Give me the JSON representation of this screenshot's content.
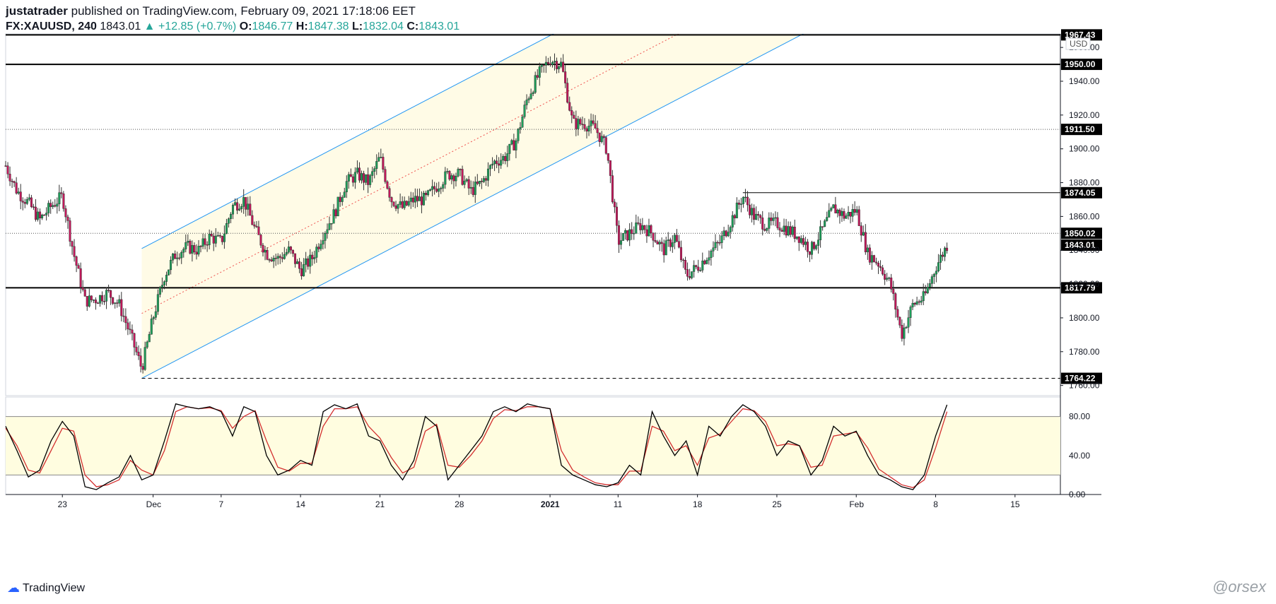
{
  "header": {
    "author": "justatrader",
    "published_text": "published on TradingView.com, February 09, 2021 17:18:06 EET",
    "symbol": "FX:XAUUSD, 240",
    "last": "1843.01",
    "change": "▲ +12.85 (+0.7%)",
    "open_label": "O:",
    "open": "1846.77",
    "high_label": "H:",
    "high": "1847.38",
    "low_label": "L:",
    "low": "1832.04",
    "close_label": "C:",
    "close": "1843.01"
  },
  "footer": {
    "brand": "TradingView",
    "watermark": "@orsex"
  },
  "colors": {
    "up": "#26a69a",
    "down": "#ef5350",
    "candle_up_body": "#1e9e5a",
    "candle_down_body": "#c2185b",
    "channel_line": "#2196f3",
    "channel_fill": "#fffbe6",
    "stoch_band": "#fffde0",
    "stoch_k": "#000000",
    "stoch_d": "#d32f2f"
  },
  "chart_data": [
    {
      "type": "candlestick",
      "currency_label": "USD",
      "ylim": [
        1754,
        1968
      ],
      "y_ticks": [
        "1960.00",
        "1940.00",
        "1920.00",
        "1900.00",
        "1880.00",
        "1860.00",
        "1840.00",
        "1820.00",
        "1800.00",
        "1780.00",
        "1760.00"
      ],
      "x_ticks": [
        "23",
        "Dec",
        "7",
        "14",
        "21",
        "28",
        "2021",
        "11",
        "18",
        "25",
        "Feb",
        "8",
        "15"
      ],
      "x_ticks_bold": [
        "2021"
      ],
      "horizontal_levels": [
        {
          "value": 1967.43,
          "label": "1967.43",
          "style": "solid"
        },
        {
          "value": 1950.0,
          "label": "1950.00",
          "style": "solid"
        },
        {
          "value": 1911.5,
          "label": "1911.50",
          "style": "dotted"
        },
        {
          "value": 1874.05,
          "label": "1874.05",
          "style": "segment"
        },
        {
          "value": 1850.02,
          "label": "1850.02",
          "style": "dotted"
        },
        {
          "value": 1843.01,
          "label": "1843.01",
          "style": "current"
        },
        {
          "value": 1817.79,
          "label": "1817.79",
          "style": "solid"
        },
        {
          "value": 1764.22,
          "label": "1764.22",
          "style": "dashed"
        }
      ],
      "channel": {
        "start_date": "Nov 30",
        "end_date": "Jan 11",
        "lower_start": 1764.2,
        "lower_end": 1911.0,
        "upper_start": 1841.0,
        "upper_end": 1988.0
      },
      "price_path": [
        [
          "Nov 18",
          1890
        ],
        [
          "Nov 19",
          1875
        ],
        [
          "Nov 20",
          1868
        ],
        [
          "Nov 21",
          1858
        ],
        [
          "Nov 22",
          1866
        ],
        [
          "Nov 23",
          1872
        ],
        [
          "Nov 24",
          1838
        ],
        [
          "Nov 25",
          1810
        ],
        [
          "Nov 26",
          1811
        ],
        [
          "Nov 27",
          1815
        ],
        [
          "Nov 28",
          1808
        ],
        [
          "Nov 29",
          1790
        ],
        [
          "Nov 30",
          1770
        ],
        [
          "Dec 1",
          1800
        ],
        [
          "Dec 2",
          1825
        ],
        [
          "Dec 3",
          1838
        ],
        [
          "Dec 4",
          1842
        ],
        [
          "Dec 5",
          1840
        ],
        [
          "Dec 6",
          1848
        ],
        [
          "Dec 7",
          1845
        ],
        [
          "Dec 8",
          1866
        ],
        [
          "Dec 9",
          1870
        ],
        [
          "Dec 10",
          1852
        ],
        [
          "Dec 11",
          1838
        ],
        [
          "Dec 12",
          1835
        ],
        [
          "Dec 13",
          1840
        ],
        [
          "Dec 14",
          1828
        ],
        [
          "Dec 15",
          1835
        ],
        [
          "Dec 16",
          1850
        ],
        [
          "Dec 17",
          1862
        ],
        [
          "Dec 18",
          1880
        ],
        [
          "Dec 19",
          1885
        ],
        [
          "Dec 20",
          1880
        ],
        [
          "Dec 21",
          1895
        ],
        [
          "Dec 22",
          1870
        ],
        [
          "Dec 23",
          1865
        ],
        [
          "Dec 24",
          1870
        ],
        [
          "Dec 25",
          1870
        ],
        [
          "Dec 26",
          1878
        ],
        [
          "Dec 27",
          1885
        ],
        [
          "Dec 28",
          1885
        ],
        [
          "Dec 29",
          1875
        ],
        [
          "Dec 30",
          1880
        ],
        [
          "Dec 31",
          1892
        ],
        [
          "Jan 1",
          1895
        ],
        [
          "Jan 2",
          1905
        ],
        [
          "Jan 3",
          1930
        ],
        [
          "Jan 4",
          1944
        ],
        [
          "Jan 5",
          1953
        ],
        [
          "Jan 6",
          1950
        ],
        [
          "Jan 7",
          1915
        ],
        [
          "Jan 8",
          1915
        ],
        [
          "Jan 9",
          1912
        ],
        [
          "Jan 10",
          1900
        ],
        [
          "Jan 11",
          1845
        ],
        [
          "Jan 12",
          1850
        ],
        [
          "Jan 13",
          1855
        ],
        [
          "Jan 14",
          1850
        ],
        [
          "Jan 15",
          1840
        ],
        [
          "Jan 16",
          1848
        ],
        [
          "Jan 17",
          1825
        ],
        [
          "Jan 18",
          1830
        ],
        [
          "Jan 19",
          1838
        ],
        [
          "Jan 20",
          1845
        ],
        [
          "Jan 21",
          1858
        ],
        [
          "Jan 22",
          1872
        ],
        [
          "Jan 23",
          1860
        ],
        [
          "Jan 24",
          1855
        ],
        [
          "Jan 25",
          1856
        ],
        [
          "Jan 26",
          1852
        ],
        [
          "Jan 27",
          1848
        ],
        [
          "Jan 28",
          1840
        ],
        [
          "Jan 29",
          1852
        ],
        [
          "Jan 30",
          1865
        ],
        [
          "Jan 31",
          1860
        ],
        [
          "Feb 1",
          1864
        ],
        [
          "Feb 2",
          1838
        ],
        [
          "Feb 3",
          1832
        ],
        [
          "Feb 4",
          1820
        ],
        [
          "Feb 5",
          1790
        ],
        [
          "Feb 6",
          1808
        ],
        [
          "Feb 7",
          1812
        ],
        [
          "Feb 8",
          1830
        ],
        [
          "Feb 9",
          1843
        ]
      ]
    },
    {
      "type": "line",
      "name": "stochastic",
      "ylim": [
        0,
        100
      ],
      "y_ticks": [
        "80.00",
        "40.00",
        "0.00"
      ],
      "band": [
        20,
        80
      ],
      "k": [
        [
          "Nov 18",
          70
        ],
        [
          "Nov 19",
          45
        ],
        [
          "Nov 20",
          18
        ],
        [
          "Nov 21",
          25
        ],
        [
          "Nov 22",
          55
        ],
        [
          "Nov 23",
          75
        ],
        [
          "Nov 24",
          60
        ],
        [
          "Nov 25",
          8
        ],
        [
          "Nov 26",
          5
        ],
        [
          "Nov 27",
          12
        ],
        [
          "Nov 28",
          18
        ],
        [
          "Nov 29",
          40
        ],
        [
          "Nov 30",
          15
        ],
        [
          "Dec 1",
          20
        ],
        [
          "Dec 2",
          55
        ],
        [
          "Dec 3",
          93
        ],
        [
          "Dec 4",
          90
        ],
        [
          "Dec 5",
          88
        ],
        [
          "Dec 6",
          90
        ],
        [
          "Dec 7",
          85
        ],
        [
          "Dec 8",
          60
        ],
        [
          "Dec 9",
          90
        ],
        [
          "Dec 10",
          85
        ],
        [
          "Dec 11",
          40
        ],
        [
          "Dec 12",
          20
        ],
        [
          "Dec 13",
          25
        ],
        [
          "Dec 14",
          35
        ],
        [
          "Dec 15",
          30
        ],
        [
          "Dec 16",
          85
        ],
        [
          "Dec 17",
          92
        ],
        [
          "Dec 18",
          88
        ],
        [
          "Dec 19",
          93
        ],
        [
          "Dec 20",
          60
        ],
        [
          "Dec 21",
          55
        ],
        [
          "Dec 22",
          30
        ],
        [
          "Dec 23",
          15
        ],
        [
          "Dec 24",
          35
        ],
        [
          "Dec 25",
          80
        ],
        [
          "Dec 26",
          70
        ],
        [
          "Dec 27",
          15
        ],
        [
          "Dec 28",
          30
        ],
        [
          "Dec 29",
          45
        ],
        [
          "Dec 30",
          60
        ],
        [
          "Dec 31",
          85
        ],
        [
          "Jan 1",
          90
        ],
        [
          "Jan 2",
          85
        ],
        [
          "Jan 3",
          93
        ],
        [
          "Jan 4",
          90
        ],
        [
          "Jan 5",
          88
        ],
        [
          "Jan 6",
          30
        ],
        [
          "Jan 7",
          20
        ],
        [
          "Jan 8",
          15
        ],
        [
          "Jan 9",
          10
        ],
        [
          "Jan 10",
          8
        ],
        [
          "Jan 11",
          12
        ],
        [
          "Jan 12",
          30
        ],
        [
          "Jan 13",
          20
        ],
        [
          "Jan 14",
          85
        ],
        [
          "Jan 15",
          60
        ],
        [
          "Jan 16",
          40
        ],
        [
          "Jan 17",
          55
        ],
        [
          "Jan 18",
          20
        ],
        [
          "Jan 19",
          70
        ],
        [
          "Jan 20",
          60
        ],
        [
          "Jan 21",
          80
        ],
        [
          "Jan 22",
          92
        ],
        [
          "Jan 23",
          85
        ],
        [
          "Jan 24",
          70
        ],
        [
          "Jan 25",
          40
        ],
        [
          "Jan 26",
          55
        ],
        [
          "Jan 27",
          50
        ],
        [
          "Jan 28",
          20
        ],
        [
          "Jan 29",
          35
        ],
        [
          "Jan 30",
          70
        ],
        [
          "Jan 31",
          60
        ],
        [
          "Feb 1",
          65
        ],
        [
          "Feb 2",
          40
        ],
        [
          "Feb 3",
          20
        ],
        [
          "Feb 4",
          15
        ],
        [
          "Feb 5",
          8
        ],
        [
          "Feb 6",
          5
        ],
        [
          "Feb 7",
          20
        ],
        [
          "Feb 8",
          60
        ],
        [
          "Feb 9",
          92
        ]
      ],
      "d": [
        [
          "Nov 18",
          68
        ],
        [
          "Nov 19",
          50
        ],
        [
          "Nov 20",
          25
        ],
        [
          "Nov 21",
          22
        ],
        [
          "Nov 22",
          45
        ],
        [
          "Nov 23",
          68
        ],
        [
          "Nov 24",
          65
        ],
        [
          "Nov 25",
          20
        ],
        [
          "Nov 26",
          8
        ],
        [
          "Nov 27",
          10
        ],
        [
          "Nov 28",
          15
        ],
        [
          "Nov 29",
          35
        ],
        [
          "Nov 30",
          25
        ],
        [
          "Dec 1",
          20
        ],
        [
          "Dec 2",
          45
        ],
        [
          "Dec 3",
          85
        ],
        [
          "Dec 4",
          90
        ],
        [
          "Dec 5",
          88
        ],
        [
          "Dec 6",
          89
        ],
        [
          "Dec 7",
          86
        ],
        [
          "Dec 8",
          68
        ],
        [
          "Dec 9",
          80
        ],
        [
          "Dec 10",
          86
        ],
        [
          "Dec 11",
          55
        ],
        [
          "Dec 12",
          28
        ],
        [
          "Dec 13",
          24
        ],
        [
          "Dec 14",
          32
        ],
        [
          "Dec 15",
          32
        ],
        [
          "Dec 16",
          70
        ],
        [
          "Dec 17",
          88
        ],
        [
          "Dec 18",
          88
        ],
        [
          "Dec 19",
          90
        ],
        [
          "Dec 20",
          70
        ],
        [
          "Dec 21",
          58
        ],
        [
          "Dec 22",
          38
        ],
        [
          "Dec 23",
          22
        ],
        [
          "Dec 24",
          28
        ],
        [
          "Dec 25",
          65
        ],
        [
          "Dec 26",
          72
        ],
        [
          "Dec 27",
          30
        ],
        [
          "Dec 28",
          28
        ],
        [
          "Dec 29",
          40
        ],
        [
          "Dec 30",
          55
        ],
        [
          "Dec 31",
          78
        ],
        [
          "Jan 1",
          87
        ],
        [
          "Jan 2",
          86
        ],
        [
          "Jan 3",
          90
        ],
        [
          "Jan 4",
          90
        ],
        [
          "Jan 5",
          88
        ],
        [
          "Jan 6",
          45
        ],
        [
          "Jan 7",
          25
        ],
        [
          "Jan 8",
          18
        ],
        [
          "Jan 9",
          12
        ],
        [
          "Jan 10",
          10
        ],
        [
          "Jan 11",
          10
        ],
        [
          "Jan 12",
          24
        ],
        [
          "Jan 13",
          24
        ],
        [
          "Jan 14",
          70
        ],
        [
          "Jan 15",
          65
        ],
        [
          "Jan 16",
          45
        ],
        [
          "Jan 17",
          50
        ],
        [
          "Jan 18",
          30
        ],
        [
          "Jan 19",
          58
        ],
        [
          "Jan 20",
          62
        ],
        [
          "Jan 21",
          75
        ],
        [
          "Jan 22",
          88
        ],
        [
          "Jan 23",
          86
        ],
        [
          "Jan 24",
          75
        ],
        [
          "Jan 25",
          50
        ],
        [
          "Jan 26",
          52
        ],
        [
          "Jan 27",
          50
        ],
        [
          "Jan 28",
          28
        ],
        [
          "Jan 29",
          30
        ],
        [
          "Jan 30",
          60
        ],
        [
          "Jan 31",
          62
        ],
        [
          "Feb 1",
          64
        ],
        [
          "Feb 2",
          48
        ],
        [
          "Feb 3",
          26
        ],
        [
          "Feb 4",
          18
        ],
        [
          "Feb 5",
          10
        ],
        [
          "Feb 6",
          7
        ],
        [
          "Feb 7",
          15
        ],
        [
          "Feb 8",
          48
        ],
        [
          "Feb 9",
          85
        ]
      ]
    }
  ]
}
